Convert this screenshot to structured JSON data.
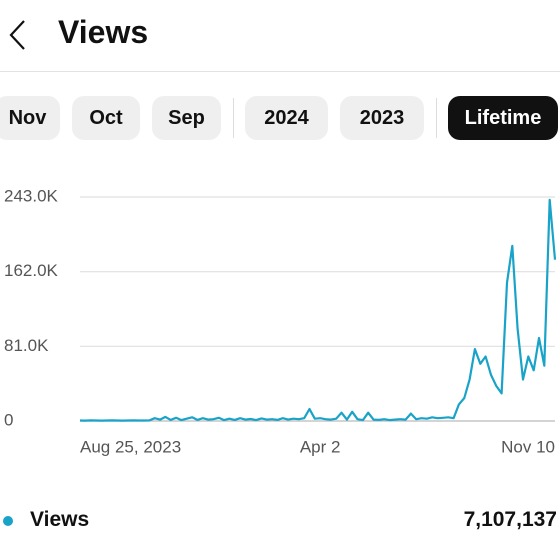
{
  "header": {
    "title": "Views"
  },
  "tabs": [
    "Nov",
    "Oct",
    "Sep",
    "2024",
    "2023",
    "Lifetime"
  ],
  "selected_tab_index": 5,
  "chart_data": {
    "type": "line",
    "categories": [
      "Aug 25, 2023",
      null,
      null,
      null,
      null,
      null,
      null,
      null,
      null,
      null,
      null,
      null,
      null,
      null,
      null,
      null,
      null,
      null,
      null,
      null,
      null,
      null,
      null,
      null,
      null,
      null,
      null,
      null,
      null,
      null,
      null,
      null,
      null,
      null,
      null,
      null,
      null,
      null,
      null,
      null,
      null,
      null,
      null,
      null,
      null,
      "Apr 2",
      null,
      null,
      null,
      null,
      null,
      null,
      null,
      null,
      null,
      null,
      null,
      null,
      null,
      null,
      null,
      null,
      null,
      null,
      null,
      null,
      null,
      null,
      null,
      null,
      null,
      null,
      null,
      null,
      null,
      null,
      null,
      null,
      null,
      null,
      null,
      null,
      null,
      null,
      null,
      null,
      null,
      null,
      null,
      "Nov 10"
    ],
    "series": [
      {
        "name": "Views",
        "color": "#1aa3c8",
        "values": [
          500,
          400,
          600,
          500,
          400,
          500,
          600,
          500,
          400,
          500,
          600,
          500,
          500,
          600,
          3000,
          1500,
          4500,
          1200,
          3500,
          1000,
          2500,
          4000,
          1200,
          3000,
          1500,
          2000,
          3500,
          1000,
          2500,
          1200,
          3000,
          1500,
          2200,
          1000,
          2800,
          1500,
          2000,
          1200,
          3000,
          1500,
          2500,
          2000,
          3000,
          13000,
          2500,
          3000,
          2000,
          1500,
          2500,
          9000,
          1500,
          10000,
          2000,
          1000,
          9000,
          1500,
          1200,
          2000,
          1000,
          1500,
          2000,
          1500,
          8000,
          2000,
          3000,
          2500,
          4000,
          3000,
          3500,
          4000,
          3000,
          18000,
          25000,
          45000,
          78000,
          62000,
          70000,
          50000,
          38000,
          30000,
          150000,
          190000,
          100000,
          45000,
          70000,
          55000,
          90000,
          60000,
          240000,
          175000
        ]
      }
    ],
    "ylim": [
      0,
      243000
    ],
    "yticks": [
      0,
      {
        "value": 81000,
        "label": "81.0K"
      },
      {
        "value": 162000,
        "label": "162.0K"
      },
      {
        "value": 243000,
        "label": "243.0K"
      }
    ],
    "grid": true,
    "total": {
      "value": 7107137,
      "label": "7,107,137"
    }
  }
}
